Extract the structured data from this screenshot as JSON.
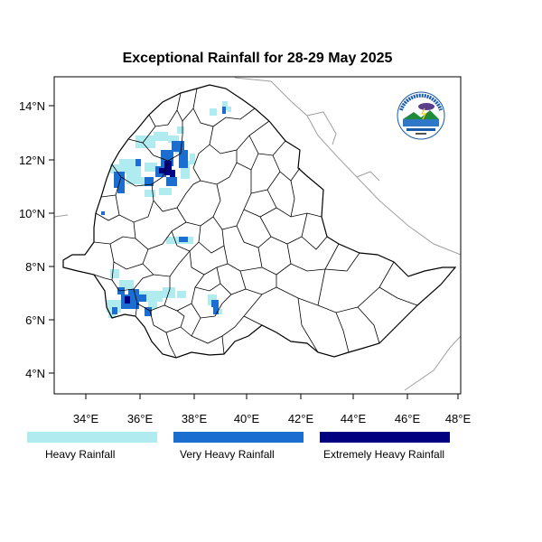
{
  "title": "Exceptional Rainfall for 28-29 May 2025",
  "axes": {
    "lon_ticks": [
      "34°E",
      "36°E",
      "38°E",
      "40°E",
      "42°E",
      "44°E",
      "46°E",
      "48°E"
    ],
    "lat_ticks": [
      "4°N",
      "6°N",
      "8°N",
      "10°N",
      "12°N",
      "14°N"
    ],
    "lon_range": [
      32.8,
      48.2
    ],
    "lat_range": [
      3.3,
      15.4
    ]
  },
  "legend": [
    {
      "label": "Heavy Rainfall",
      "color": "#b0ecef"
    },
    {
      "label": "Very Heavy Rainfall",
      "color": "#1c6dd0"
    },
    {
      "label": "Extremely Heavy Rainfall",
      "color": "#000080"
    }
  ],
  "logo": {
    "icon": "meteorology-institute-logo-icon"
  },
  "colors": {
    "heavy": "#b0ecef",
    "very_heavy": "#1c6dd0",
    "extreme": "#000080",
    "border": "#000000"
  }
}
